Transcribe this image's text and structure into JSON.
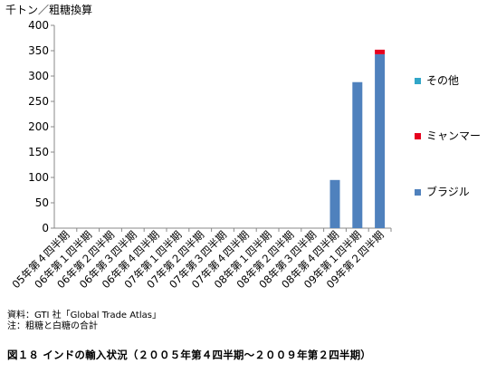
{
  "unit_label": "千トン／粗糖換算",
  "notes": [
    "資料：GTI 社「Global Trade Atlas」",
    "注：粗糖と白糖の合計"
  ],
  "caption": "図１８ インドの輸入状況（２００５年第４四半期～２００９年第２四半期）",
  "chart_data": {
    "type": "bar",
    "stacked": true,
    "categories": [
      "05年第４四半期",
      "06年第１四半期",
      "06年第２四半期",
      "06年第３四半期",
      "06年第４四半期",
      "07年第１四半期",
      "07年第２四半期",
      "07年第３四半期",
      "07年第４四半期",
      "08年第１四半期",
      "08年第２四半期",
      "08年第３四半期",
      "08年第４四半期",
      "09年第１四半期",
      "09年第２四半期"
    ],
    "series": [
      {
        "name": "ブラジル",
        "color": "#4f81bd",
        "values": [
          0,
          0,
          0,
          0,
          0,
          0,
          0,
          0,
          0,
          0,
          0,
          0,
          95,
          288,
          343
        ]
      },
      {
        "name": "ミャンマー",
        "color": "#e6001e",
        "values": [
          0,
          0,
          0,
          0,
          0,
          0,
          0,
          0,
          0,
          0,
          0,
          0,
          0,
          0,
          9
        ]
      },
      {
        "name": "その他",
        "color": "#31a6c8",
        "values": [
          0,
          0,
          0,
          0,
          0,
          0,
          0,
          0,
          0,
          0,
          0,
          0,
          0,
          0,
          0
        ]
      }
    ],
    "yticks": [
      "0",
      "50",
      "100",
      "150",
      "200",
      "250",
      "300",
      "350",
      "400"
    ],
    "ylim": [
      0,
      400
    ],
    "legend_order": [
      "その他",
      "ミャンマー",
      "ブラジル"
    ],
    "legend_position": "right",
    "grid": false
  }
}
